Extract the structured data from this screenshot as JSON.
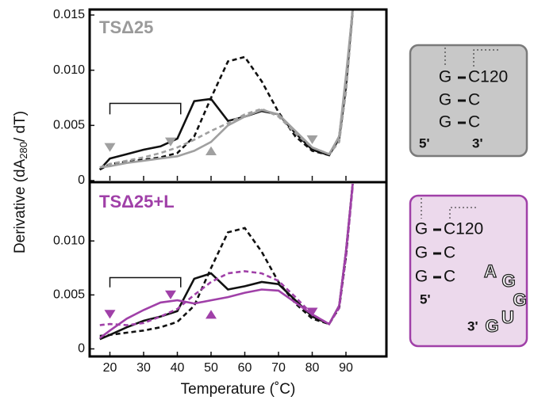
{
  "chart_data": [
    {
      "type": "line",
      "panel_label": "TSΔ25",
      "panel_label_color": "#9a9a9a",
      "xlim": [
        14,
        102
      ],
      "xticks": [
        20,
        30,
        40,
        50,
        60,
        70,
        80,
        90
      ],
      "ylim": [
        0,
        0.0155
      ],
      "yticks": [
        0.015,
        {
          "value": 0.01,
          "label": "0.010"
        },
        0.005,
        0
      ],
      "x": [
        17,
        20,
        25,
        30,
        35,
        40,
        45,
        50,
        55,
        60,
        65,
        70,
        75,
        80,
        85,
        88,
        90,
        92
      ],
      "series": [
        {
          "color": "#111111",
          "dash": false,
          "values": [
            0.001,
            0.002,
            0.0024,
            0.0028,
            0.0031,
            0.0038,
            0.0072,
            0.0074,
            0.0054,
            0.0058,
            0.0063,
            0.006,
            0.0043,
            0.0028,
            0.0023,
            0.004,
            0.009,
            0.0155
          ]
        },
        {
          "color": "#111111",
          "dash": true,
          "values": [
            0.001,
            0.0015,
            0.0017,
            0.0019,
            0.0021,
            0.0025,
            0.004,
            0.0075,
            0.0108,
            0.0112,
            0.009,
            0.0062,
            0.004,
            0.0027,
            0.0023,
            0.0038,
            0.0085,
            0.0155
          ]
        },
        {
          "color": "#a0a0a0",
          "dash": false,
          "values": [
            0.0012,
            0.0013,
            0.0016,
            0.0018,
            0.002,
            0.0022,
            0.0027,
            0.0035,
            0.005,
            0.0058,
            0.0064,
            0.006,
            0.0045,
            0.003,
            0.0024,
            0.004,
            0.0095,
            0.0155
          ]
        },
        {
          "color": "#a0a0a0",
          "dash": true,
          "values": [
            0.0012,
            0.0015,
            0.0018,
            0.0021,
            0.0025,
            0.003,
            0.0037,
            0.0045,
            0.0052,
            0.006,
            0.0065,
            0.0058,
            0.0043,
            0.003,
            0.0024,
            0.0035,
            0.008,
            0.015
          ]
        }
      ],
      "markers": {
        "color": "#a0a0a0",
        "x": [
          20,
          38,
          50,
          80
        ],
        "y": [
          0.0029,
          0.0034,
          0.0026,
          0.0036
        ],
        "shape": [
          "down",
          "down",
          "up",
          "down"
        ]
      },
      "bracket": {
        "x": [
          20,
          41
        ],
        "y": [
          0.007,
          0.006
        ]
      }
    },
    {
      "type": "line",
      "panel_label": "TSΔ25+L",
      "panel_label_color": "#a040a8",
      "xlim": [
        14,
        102
      ],
      "xticks": [
        20,
        30,
        40,
        50,
        60,
        70,
        80,
        90
      ],
      "xlabel": "Temperature (˚C)",
      "ylim": [
        -0.0007,
        0.0153
      ],
      "yticks": [
        {
          "value": 0.01,
          "label": "0.010"
        },
        0.005,
        0
      ],
      "x": [
        17,
        20,
        25,
        30,
        35,
        40,
        45,
        50,
        55,
        60,
        65,
        70,
        75,
        80,
        85,
        88,
        90,
        92
      ],
      "series": [
        {
          "color": "#111111",
          "dash": false,
          "values": [
            0.0009,
            0.0013,
            0.002,
            0.0026,
            0.003,
            0.0035,
            0.0065,
            0.007,
            0.0055,
            0.0058,
            0.0062,
            0.006,
            0.0045,
            0.003,
            0.0023,
            0.004,
            0.009,
            0.0153
          ]
        },
        {
          "color": "#111111",
          "dash": true,
          "values": [
            0.0012,
            0.0013,
            0.0015,
            0.0017,
            0.002,
            0.0025,
            0.004,
            0.0075,
            0.0108,
            0.0112,
            0.009,
            0.0062,
            0.0042,
            0.0028,
            0.0023,
            0.0038,
            0.0085,
            0.0153
          ]
        },
        {
          "color": "#a040a8",
          "dash": false,
          "values": [
            0.001,
            0.0017,
            0.0028,
            0.0036,
            0.0043,
            0.0045,
            0.0042,
            0.0045,
            0.0048,
            0.0052,
            0.0055,
            0.0054,
            0.0043,
            0.0032,
            0.0023,
            0.004,
            0.009,
            0.0153
          ]
        },
        {
          "color": "#a040a8",
          "dash": true,
          "values": [
            0.0022,
            0.0023,
            0.0022,
            0.0024,
            0.003,
            0.0037,
            0.005,
            0.0062,
            0.007,
            0.0072,
            0.007,
            0.0063,
            0.0048,
            0.0032,
            0.0023,
            0.0038,
            0.0085,
            0.015
          ]
        }
      ],
      "markers": {
        "color": "#a040a8",
        "x": [
          20,
          38,
          50,
          80
        ],
        "y": [
          0.0031,
          0.0049,
          0.0031,
          0.0033
        ],
        "shape": [
          "down",
          "down",
          "up",
          "down"
        ]
      },
      "bracket": {
        "x": [
          20,
          41
        ],
        "y": [
          0.0066,
          0.0057
        ]
      }
    }
  ],
  "ylabel_parts": [
    "Derivative (dA",
    "280",
    "/ dT)"
  ],
  "diagrams": {
    "top": {
      "pairs": [
        [
          "G",
          "C120"
        ],
        [
          "G",
          "C"
        ],
        [
          "G",
          "C"
        ]
      ],
      "five": "5'",
      "three": "3'"
    },
    "bottom": {
      "pairs": [
        [
          "G",
          "C120"
        ],
        [
          "G",
          "C"
        ],
        [
          "G",
          "C"
        ]
      ],
      "five": "5'",
      "three": "3'",
      "loop": [
        "A",
        "G",
        "G",
        "U",
        "G"
      ]
    }
  }
}
